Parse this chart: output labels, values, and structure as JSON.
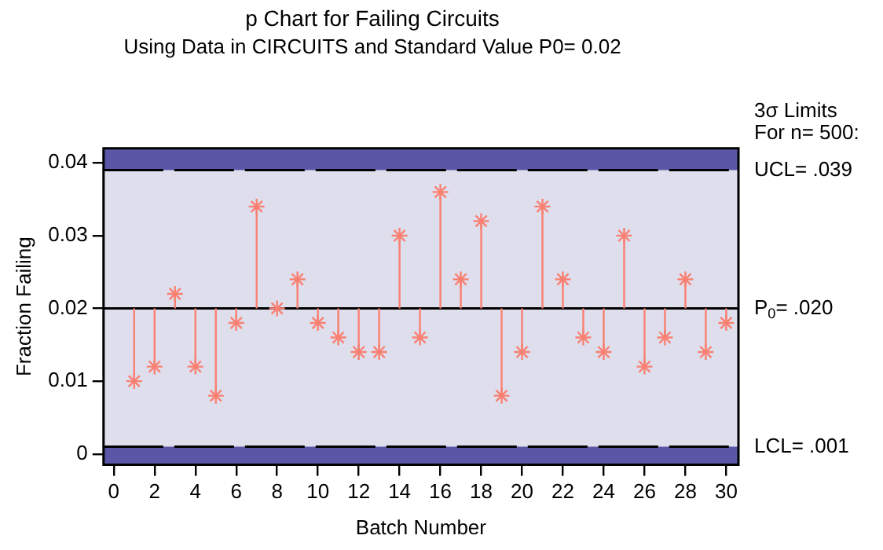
{
  "chart_data": {
    "type": "scatter",
    "title": "p Chart for Failing Circuits",
    "subtitle": "Using Data in CIRCUITS and Standard Value P0= 0.02",
    "xlabel": "Batch Number",
    "ylabel": "Fraction Failing",
    "x": [
      1,
      2,
      3,
      4,
      5,
      6,
      7,
      8,
      9,
      10,
      11,
      12,
      13,
      14,
      15,
      16,
      17,
      18,
      19,
      20,
      21,
      22,
      23,
      24,
      25,
      26,
      27,
      28,
      29,
      30
    ],
    "values": [
      0.01,
      0.012,
      0.022,
      0.012,
      0.008,
      0.018,
      0.034,
      0.02,
      0.024,
      0.018,
      0.016,
      0.014,
      0.014,
      0.03,
      0.016,
      0.036,
      0.024,
      0.032,
      0.008,
      0.014,
      0.034,
      0.024,
      0.016,
      0.014,
      0.03,
      0.012,
      0.016,
      0.024,
      0.014,
      0.018
    ],
    "errors": [
      [
        0.01,
        0.02
      ],
      [
        0.012,
        0.02
      ],
      [
        0.02,
        0.022
      ],
      [
        0.012,
        0.02
      ],
      [
        0.008,
        0.02
      ],
      [
        0.018,
        0.02
      ],
      [
        0.02,
        0.034
      ],
      null,
      [
        0.02,
        0.024
      ],
      [
        0.018,
        0.02
      ],
      [
        0.016,
        0.02
      ],
      [
        0.014,
        0.02
      ],
      [
        0.014,
        0.02
      ],
      [
        0.02,
        0.03
      ],
      [
        0.016,
        0.02
      ],
      [
        0.02,
        0.036
      ],
      [
        0.02,
        0.024
      ],
      [
        0.02,
        0.032
      ],
      [
        0.008,
        0.02
      ],
      [
        0.014,
        0.02
      ],
      [
        0.02,
        0.034
      ],
      [
        0.02,
        0.024
      ],
      [
        0.016,
        0.02
      ],
      [
        0.014,
        0.02
      ],
      [
        0.02,
        0.03
      ],
      [
        0.012,
        0.02
      ],
      [
        0.016,
        0.02
      ],
      [
        0.02,
        0.024
      ],
      [
        0.014,
        0.02
      ],
      [
        0.018,
        0.02
      ]
    ],
    "color": "#fa8072",
    "marker": "cross",
    "xlim": [
      -0.5,
      30.6
    ],
    "xticks": [
      0,
      2,
      4,
      6,
      8,
      10,
      12,
      14,
      16,
      18,
      20,
      22,
      24,
      26,
      28,
      30
    ],
    "ylim": [
      -0.0015,
      0.042
    ],
    "yticks": [
      0,
      0.01,
      0.02,
      0.03,
      0.04
    ],
    "ref_lines": [
      {
        "axis": "y",
        "value": 0.039,
        "label": "UCL= .039",
        "color": "#000000",
        "line_style": "dashed"
      },
      {
        "axis": "y",
        "value": 0.02,
        "label": "P$_{0}$= .020",
        "color": "#000000",
        "line_style": "solid"
      },
      {
        "axis": "y",
        "value": 0.001,
        "label": "LCL= .001",
        "color": "#000000",
        "line_style": "dashed"
      }
    ],
    "bands": [
      {
        "axis": "y",
        "from": 0.039,
        "to": 0.042,
        "color": "#5957a6"
      },
      {
        "axis": "y",
        "from": -0.0015,
        "to": 0.001,
        "color": "#5957a6"
      }
    ],
    "annotations": [
      "3σ Limits",
      "For n= 500:"
    ],
    "legend": false
  }
}
